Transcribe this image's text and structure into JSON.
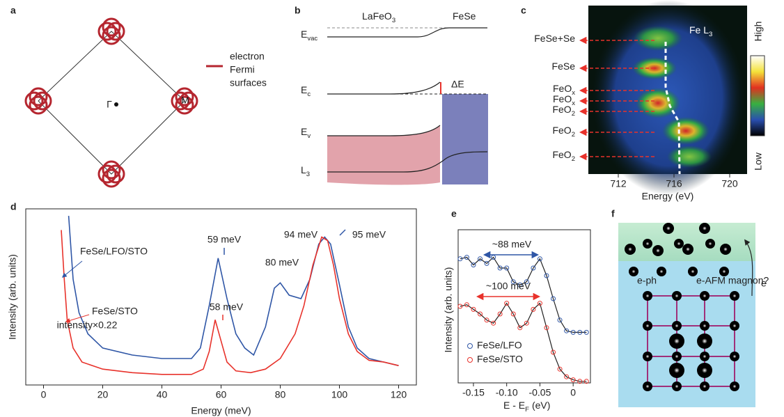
{
  "panels": {
    "labels": [
      "a",
      "b",
      "c",
      "d",
      "e",
      "f"
    ],
    "a": {
      "gamma": "Γ",
      "m": "M",
      "legend": [
        "electron",
        "Fermi",
        "surfaces"
      ]
    },
    "b": {
      "materials": [
        {
          "text": "LaFeO",
          "sub": "3"
        },
        {
          "text": "FeSe"
        }
      ],
      "levels": [
        {
          "text": "E",
          "sub": "vac"
        },
        {
          "text": "E",
          "sub": "c"
        },
        {
          "text": "E",
          "sub": "v"
        },
        {
          "text": "L",
          "sub": "3"
        }
      ],
      "offset": "ΔE"
    },
    "f": {
      "labels": [
        "e-ph",
        "e-AFM magnon?",
        "e"
      ]
    }
  },
  "chart_data": [
    {
      "type": "line",
      "xlabel": "Energy (meV)",
      "ylabel": "Intensity (arb. units)",
      "xlim": [
        -6,
        126
      ],
      "ylim": [
        0,
        1
      ],
      "xticks": [
        0,
        20,
        40,
        60,
        80,
        100,
        120
      ],
      "series": [
        {
          "name": "FeSe/LFO/STO",
          "color": "#2f56a6",
          "x": [
            8.5,
            10,
            12,
            15,
            20,
            30,
            40,
            50,
            53,
            56,
            59,
            62,
            65,
            68,
            71,
            75,
            78,
            80,
            83,
            87,
            90,
            93,
            95,
            97,
            100,
            103,
            106,
            110,
            115,
            120
          ],
          "values": [
            0.96,
            0.6,
            0.41,
            0.29,
            0.21,
            0.17,
            0.15,
            0.15,
            0.21,
            0.45,
            0.72,
            0.49,
            0.29,
            0.21,
            0.17,
            0.33,
            0.55,
            0.58,
            0.51,
            0.49,
            0.6,
            0.8,
            0.84,
            0.8,
            0.57,
            0.33,
            0.21,
            0.15,
            0.13,
            0.11
          ]
        },
        {
          "name": "FeSe/STO",
          "color": "#e8322b",
          "x": [
            6,
            7,
            8,
            10,
            13,
            20,
            30,
            40,
            50,
            54,
            56,
            58,
            60,
            62,
            65,
            70,
            75,
            80,
            85,
            88,
            91,
            94,
            96,
            98,
            100,
            103,
            106,
            110,
            115,
            120
          ],
          "values": [
            0.88,
            0.6,
            0.37,
            0.21,
            0.13,
            0.09,
            0.07,
            0.06,
            0.06,
            0.09,
            0.19,
            0.37,
            0.25,
            0.13,
            0.08,
            0.07,
            0.09,
            0.15,
            0.29,
            0.45,
            0.68,
            0.84,
            0.82,
            0.68,
            0.49,
            0.29,
            0.19,
            0.14,
            0.13,
            0.11
          ]
        }
      ],
      "annotations": [
        "59 meV",
        "80 meV",
        "94 meV",
        "95 meV",
        "58 meV",
        "intensity×0.22"
      ]
    },
    {
      "type": "line",
      "marker": "circle",
      "fit_color": "#222222",
      "xlabel": {
        "text": "E - E",
        "sub": "F",
        "tail": "(eV)"
      },
      "ylabel": "Intensity (arb. units)",
      "xlim": [
        -0.173,
        0.026
      ],
      "ylim": [
        0,
        1
      ],
      "xticks": [
        -0.15,
        {
          "value": -0.1,
          "label": "-0.10"
        },
        -0.05,
        0
      ],
      "legend": "lower left",
      "series": [
        {
          "name": "FeSe/LFO",
          "color": "#2f56a6",
          "x": [
            -0.17,
            -0.16,
            -0.15,
            -0.14,
            -0.13,
            -0.12,
            -0.11,
            -0.1,
            -0.09,
            -0.08,
            -0.07,
            -0.06,
            -0.05,
            -0.04,
            -0.03,
            -0.02,
            -0.01,
            0,
            0.01,
            0.02
          ],
          "values": [
            0.81,
            0.82,
            0.77,
            0.81,
            0.78,
            0.82,
            0.75,
            0.75,
            0.66,
            0.64,
            0.66,
            0.75,
            0.81,
            0.7,
            0.55,
            0.41,
            0.34,
            0.33,
            0.33,
            0.33
          ]
        },
        {
          "name": "FeSe/STO",
          "color": "#e8322b",
          "x": [
            -0.17,
            -0.16,
            -0.15,
            -0.14,
            -0.13,
            -0.12,
            -0.11,
            -0.1,
            -0.09,
            -0.08,
            -0.07,
            -0.06,
            -0.05,
            -0.04,
            -0.03,
            -0.02,
            -0.01,
            0,
            0.01,
            0.02
          ],
          "values": [
            0.5,
            0.51,
            0.48,
            0.45,
            0.41,
            0.39,
            0.45,
            0.52,
            0.45,
            0.36,
            0.39,
            0.48,
            0.52,
            0.36,
            0.2,
            0.09,
            0.04,
            0.02,
            0.01,
            0.01
          ]
        }
      ],
      "annotations": [
        "~88 meV",
        "~100 meV"
      ]
    },
    {
      "type": "heatmap",
      "title": {
        "text": "Fe L",
        "sub": "3"
      },
      "xlabel": "Energy (eV)",
      "xlim": [
        709.85,
        721.25
      ],
      "xticks": [
        712,
        716,
        720
      ],
      "labels": [
        {
          "text": "FeSe+Se"
        },
        {
          "text": "FeSe"
        },
        {
          "text": "FeO",
          "sub": "x"
        },
        {
          "text": "FeO",
          "sub": "x"
        },
        {
          "text": "FeO",
          "sub": "2"
        },
        {
          "text": "FeO",
          "sub": "2"
        },
        {
          "text": "FeO",
          "sub": "2"
        }
      ],
      "colorbar": [
        "High",
        "Low"
      ]
    }
  ]
}
